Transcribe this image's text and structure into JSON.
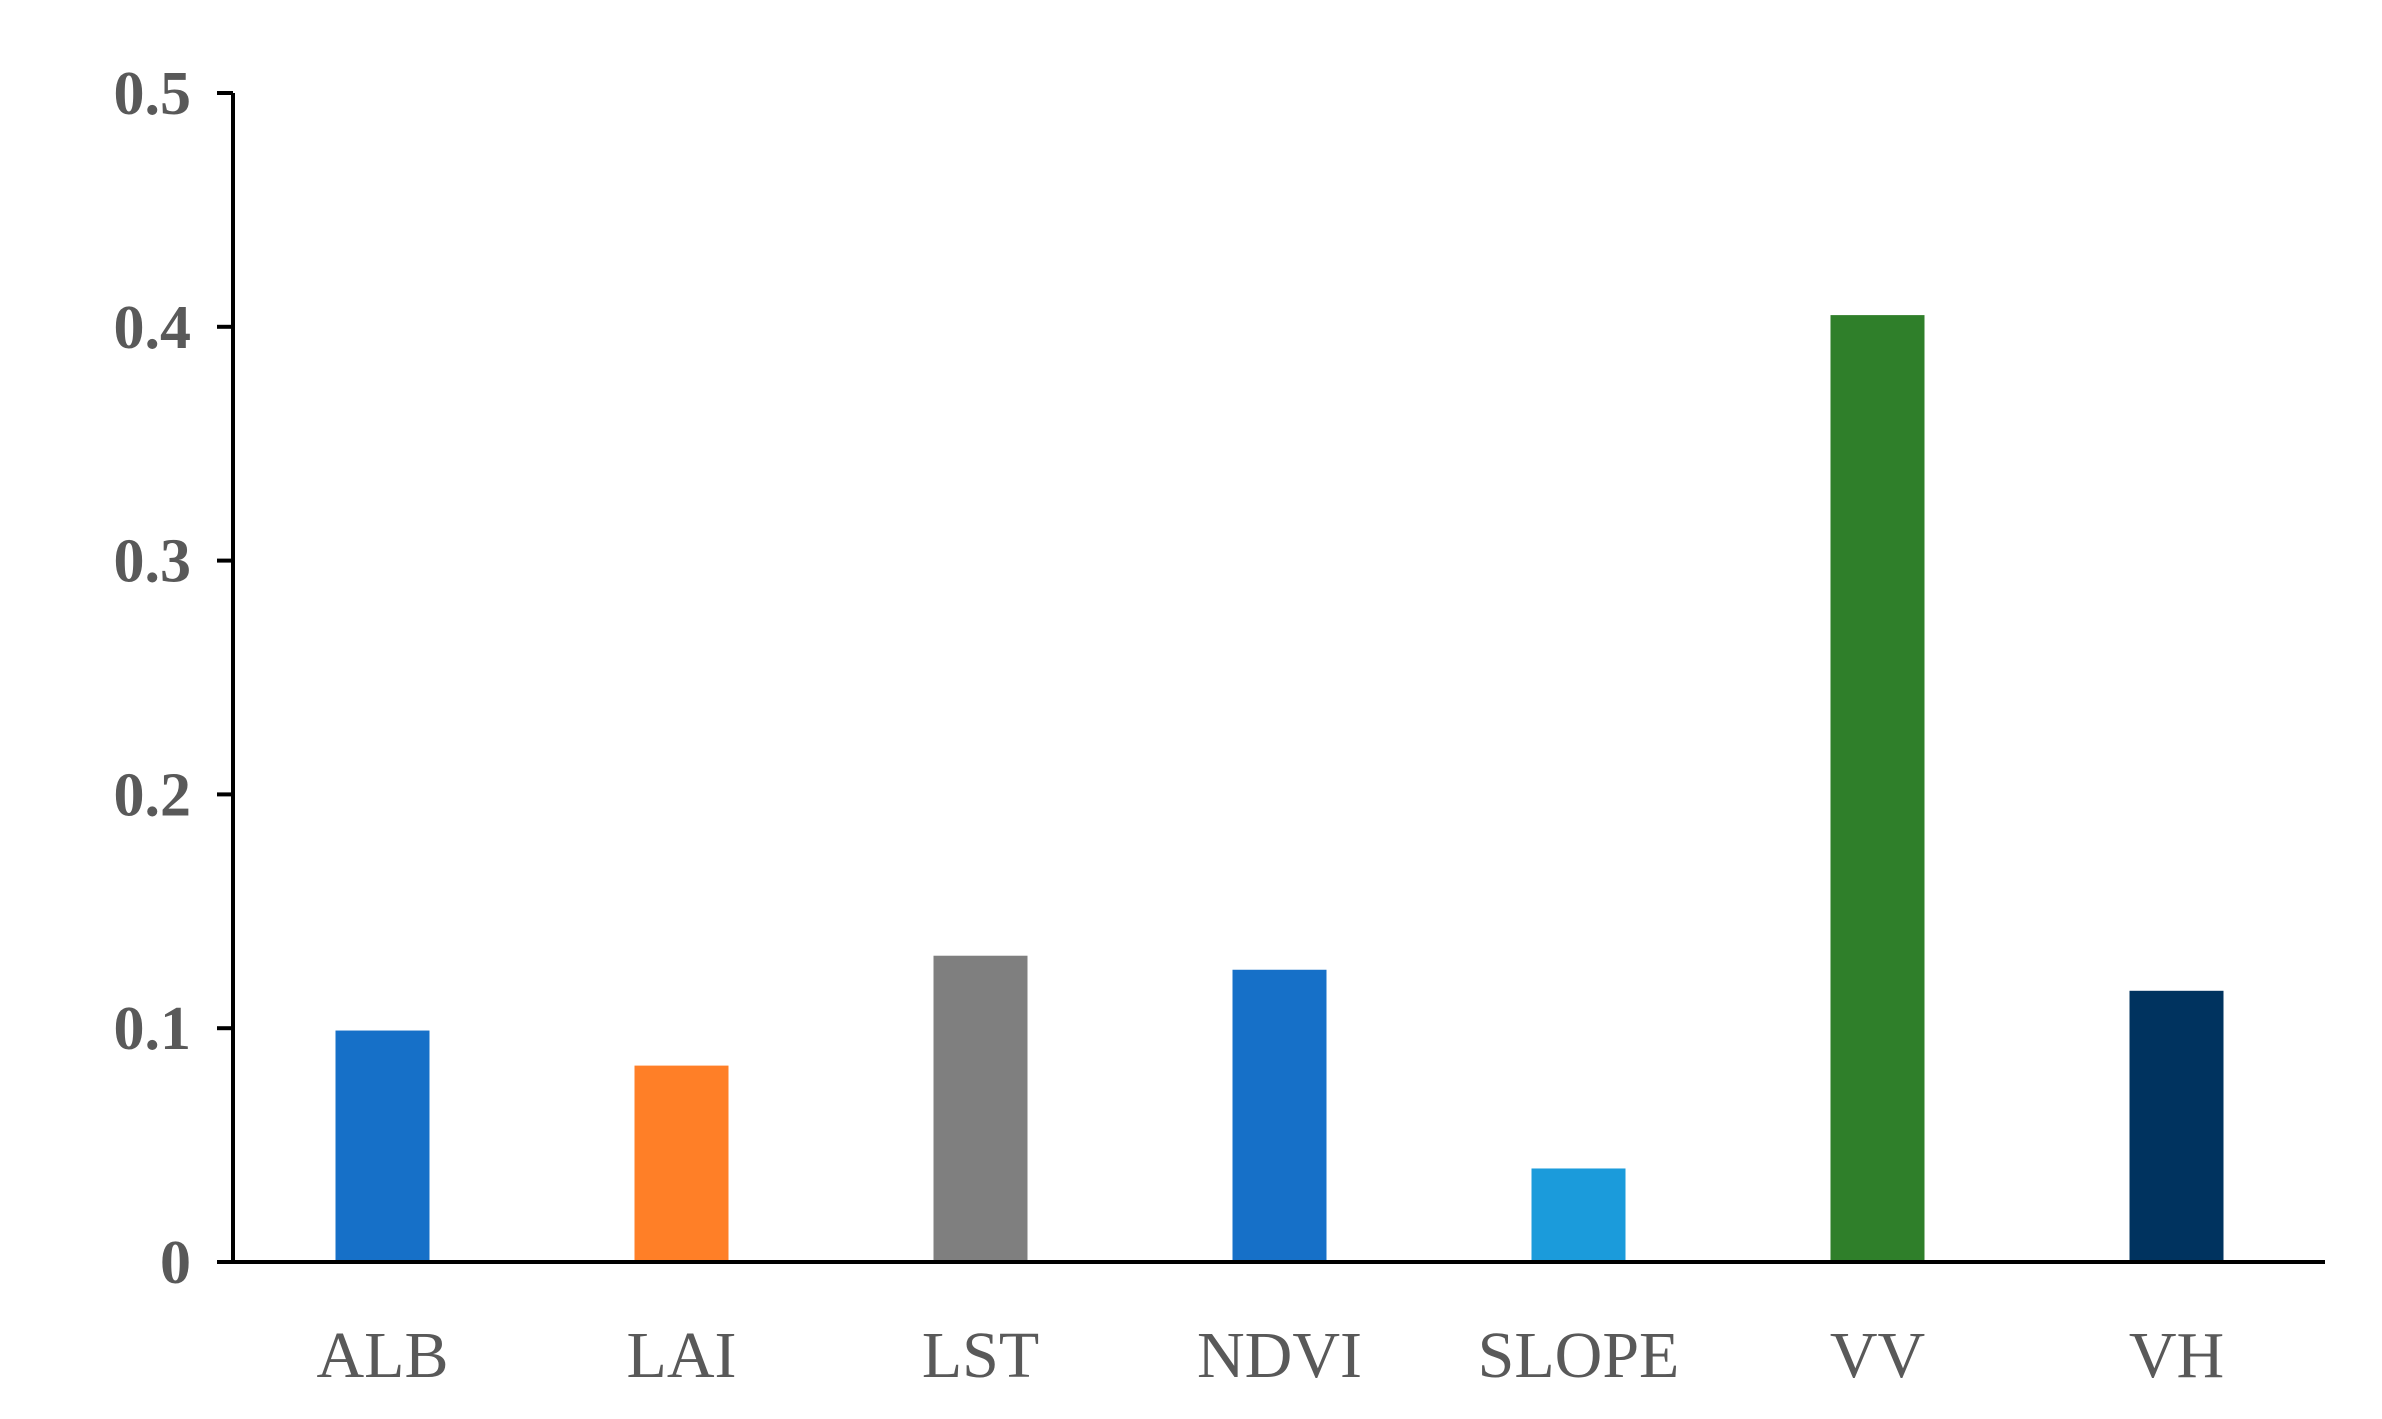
{
  "chart_data": {
    "type": "bar",
    "title": "",
    "xlabel": "",
    "ylabel": "",
    "categories": [
      "ALB",
      "LAI",
      "LST",
      "NDVI",
      "SLOPE",
      "VV",
      "VH"
    ],
    "values": [
      0.099,
      0.084,
      0.131,
      0.125,
      0.04,
      0.405,
      0.116
    ],
    "bar_colors": [
      "#1670C8",
      "#FF7F27",
      "#7F7F7F",
      "#1670C8",
      "#1B9BDB",
      "#2F7F2A",
      "#00335F"
    ],
    "ylim": [
      0,
      0.5
    ],
    "yticks": [
      0,
      0.1,
      0.2,
      0.3,
      0.4,
      0.5
    ],
    "ytick_labels": [
      "0",
      "0.1",
      "0.2",
      "0.3",
      "0.4",
      "0.5"
    ],
    "grid": false,
    "legend": "none",
    "axis_color": "#000000",
    "label_color": "#595959"
  }
}
